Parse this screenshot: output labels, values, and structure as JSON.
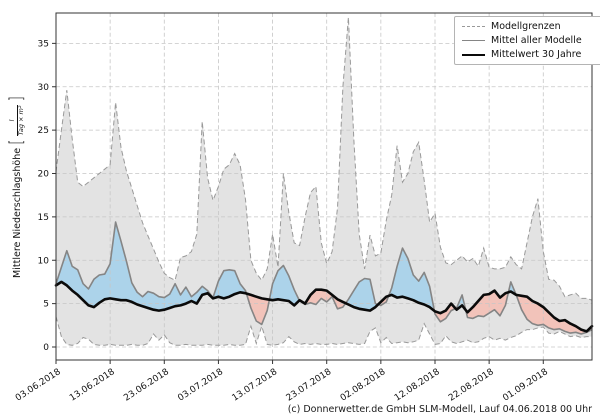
{
  "figure": {
    "caption": "(c) Donnerwetter.de GmbH SLM-Modell, Lauf 04.06.2018 00 Uhr"
  },
  "legend": {
    "items": [
      {
        "label": "Modellgrenzen",
        "style": "dashed-gray"
      },
      {
        "label": "Mittel aller Modelle",
        "style": "solid-gray"
      },
      {
        "label": "Mittelwert 30 Jahre",
        "style": "solid-black-thick"
      }
    ]
  },
  "axes": {
    "ylabel": {
      "text": "Mittlere Niederschlagshöhe",
      "unit_open": "[",
      "unit_numerator": "l",
      "unit_denominator": "Tag × m²",
      "unit_close": "]"
    }
  },
  "colors": {
    "band_fill": "#e3e3e3",
    "band_edge": "#999999",
    "model_mean_line": "#858585",
    "mean30_line": "#0a0a0a",
    "above_normal_fill": "rgba(151,205,237,0.72)",
    "below_normal_fill": "rgba(248,183,170,0.72)",
    "grid": "#c6c6c6",
    "spine": "#333333"
  },
  "chart_data": {
    "type": "line",
    "title": "",
    "x_start_date": "03.06.2018",
    "x_end_date": "10.09.2018",
    "x_tick_days": [
      0,
      10,
      20,
      30,
      40,
      50,
      60,
      70,
      80,
      90
    ],
    "x_tick_labels": [
      "03.06.2018",
      "13.06.2018",
      "23.06.2018",
      "03.07.2018",
      "13.07.2018",
      "23.07.2018",
      "02.08.2018",
      "12.08.2018",
      "22.08.2018",
      "01.09.2018"
    ],
    "y_ticks": [
      0,
      5,
      10,
      15,
      20,
      25,
      30,
      35
    ],
    "ylim": [
      -1.5,
      38.5
    ],
    "grid": true,
    "legend_position": "top-right",
    "series": [
      {
        "name": "Modellgrenzen (obere Grenze)",
        "style": "dashed",
        "color": "#999999",
        "values": [
          20.2,
          25.0,
          29.6,
          24.0,
          19.0,
          18.5,
          19.0,
          19.5,
          20.0,
          20.5,
          21.0,
          28.2,
          23.0,
          20.3,
          18.3,
          16.3,
          14.3,
          12.8,
          11.3,
          9.8,
          8.5,
          8.0,
          7.7,
          10.3,
          10.5,
          11.0,
          13.0,
          26.0,
          19.5,
          16.9,
          18.5,
          20.5,
          21.0,
          22.3,
          21.0,
          17.0,
          10.0,
          8.5,
          7.7,
          9.0,
          13.0,
          9.2,
          20.0,
          15.5,
          12.0,
          11.7,
          15.0,
          17.8,
          18.5,
          12.0,
          9.6,
          11.0,
          16.0,
          30.0,
          38.0,
          24.0,
          13.0,
          9.0,
          12.9,
          10.5,
          10.8,
          14.6,
          17.5,
          23.2,
          19.0,
          20.0,
          22.5,
          23.6,
          19.2,
          14.4,
          15.4,
          11.5,
          9.7,
          9.5,
          10.0,
          10.5,
          9.8,
          10.2,
          9.3,
          11.4,
          9.2,
          9.0,
          9.0,
          9.2,
          10.4,
          9.5,
          9.0,
          12.0,
          15.0,
          17.1,
          11.0,
          7.8,
          7.7,
          7.0,
          5.8,
          6.0,
          6.2,
          5.6,
          5.6,
          5.4
        ]
      },
      {
        "name": "Modellgrenzen (untere Grenze)",
        "style": "dashed",
        "color": "#999999",
        "values": [
          3.5,
          1.2,
          0.3,
          0.2,
          0.4,
          1.1,
          0.9,
          0.3,
          0.2,
          0.2,
          0.3,
          0.2,
          0.2,
          0.2,
          0.3,
          0.2,
          0.2,
          0.4,
          1.5,
          0.8,
          1.4,
          0.5,
          0.2,
          0.2,
          0.3,
          0.2,
          0.2,
          0.2,
          0.3,
          0.2,
          0.2,
          0.2,
          0.3,
          0.2,
          0.2,
          0.3,
          2.4,
          0.4,
          2.4,
          0.3,
          0.2,
          0.3,
          0.5,
          1.2,
          0.6,
          0.3,
          0.4,
          0.3,
          0.4,
          0.3,
          0.3,
          0.4,
          0.3,
          0.4,
          0.5,
          0.4,
          0.3,
          0.4,
          1.8,
          2.2,
          0.5,
          1.1,
          0.4,
          0.5,
          0.6,
          0.5,
          0.6,
          0.8,
          2.7,
          1.5,
          0.3,
          0.4,
          1.3,
          0.6,
          0.4,
          0.6,
          0.8,
          0.5,
          0.6,
          1.0,
          1.2,
          0.8,
          1.0,
          0.8,
          1.1,
          1.3,
          1.7,
          2.0,
          2.0,
          2.2,
          2.3,
          1.6,
          1.5,
          1.8,
          1.5,
          1.2,
          1.3,
          1.1,
          1.2,
          1.2
        ]
      },
      {
        "name": "Mittel aller Modelle",
        "style": "solid",
        "color": "#858585",
        "values": [
          7.3,
          9.2,
          11.1,
          9.3,
          8.9,
          7.3,
          6.7,
          7.8,
          8.3,
          8.4,
          9.6,
          14.4,
          12.2,
          9.9,
          7.4,
          6.3,
          5.8,
          6.4,
          6.2,
          5.8,
          5.7,
          6.1,
          7.3,
          6.0,
          6.9,
          5.8,
          6.3,
          7.0,
          6.5,
          5.7,
          7.6,
          8.8,
          8.9,
          8.8,
          7.3,
          6.5,
          4.5,
          3.0,
          2.6,
          4.2,
          7.3,
          8.8,
          9.4,
          8.2,
          6.6,
          5.3,
          4.9,
          5.1,
          4.9,
          5.6,
          5.2,
          5.8,
          4.4,
          4.6,
          5.5,
          6.5,
          7.5,
          7.9,
          7.8,
          5.0,
          4.8,
          5.2,
          6.8,
          9.3,
          11.4,
          10.2,
          8.3,
          7.6,
          8.6,
          7.0,
          3.8,
          2.9,
          3.3,
          4.2,
          4.5,
          6.0,
          3.4,
          3.3,
          3.6,
          3.5,
          3.9,
          4.3,
          3.6,
          4.8,
          7.5,
          6.0,
          4.3,
          3.2,
          2.7,
          2.5,
          2.6,
          2.2,
          2.0,
          2.1,
          1.8,
          1.6,
          1.7,
          1.5,
          1.7,
          2.0
        ]
      },
      {
        "name": "Mittelwert 30 Jahre",
        "style": "solid-thick",
        "color": "#0a0a0a",
        "values": [
          7.1,
          7.5,
          7.1,
          6.5,
          6.0,
          5.4,
          4.8,
          4.6,
          5.1,
          5.5,
          5.6,
          5.5,
          5.4,
          5.4,
          5.2,
          4.9,
          4.7,
          4.5,
          4.3,
          4.2,
          4.3,
          4.5,
          4.7,
          4.8,
          5.0,
          5.3,
          5.0,
          6.0,
          6.2,
          5.6,
          5.8,
          5.6,
          5.8,
          6.1,
          6.3,
          6.2,
          6.0,
          5.8,
          5.6,
          5.5,
          5.4,
          5.5,
          5.4,
          5.3,
          4.8,
          5.4,
          5.0,
          6.0,
          6.6,
          6.6,
          6.5,
          6.0,
          5.5,
          5.2,
          4.9,
          4.6,
          4.4,
          4.3,
          4.2,
          4.6,
          5.2,
          5.8,
          6.0,
          5.7,
          5.8,
          5.6,
          5.4,
          5.1,
          4.9,
          4.6,
          4.1,
          3.9,
          4.2,
          5.0,
          4.3,
          4.8,
          4.0,
          4.6,
          5.3,
          6.0,
          6.1,
          6.5,
          5.7,
          6.2,
          6.4,
          6.0,
          5.9,
          5.8,
          5.3,
          5.0,
          4.6,
          4.0,
          3.4,
          3.0,
          3.1,
          2.7,
          2.4,
          2.0,
          1.8,
          2.4
        ]
      }
    ],
    "fills": [
      {
        "name": "model-range-band",
        "between": [
          "Modellgrenzen (obere Grenze)",
          "Modellgrenzen (untere Grenze)"
        ],
        "color": "#e3e3e3"
      },
      {
        "name": "above-normal",
        "between": [
          "Mittel aller Modelle",
          "Mittelwert 30 Jahre"
        ],
        "condition": "model > normal",
        "color": "rgba(151,205,237,0.72)"
      },
      {
        "name": "below-normal",
        "between": [
          "Mittel aller Modelle",
          "Mittelwert 30 Jahre"
        ],
        "condition": "model < normal",
        "color": "rgba(248,183,170,0.72)"
      }
    ]
  }
}
